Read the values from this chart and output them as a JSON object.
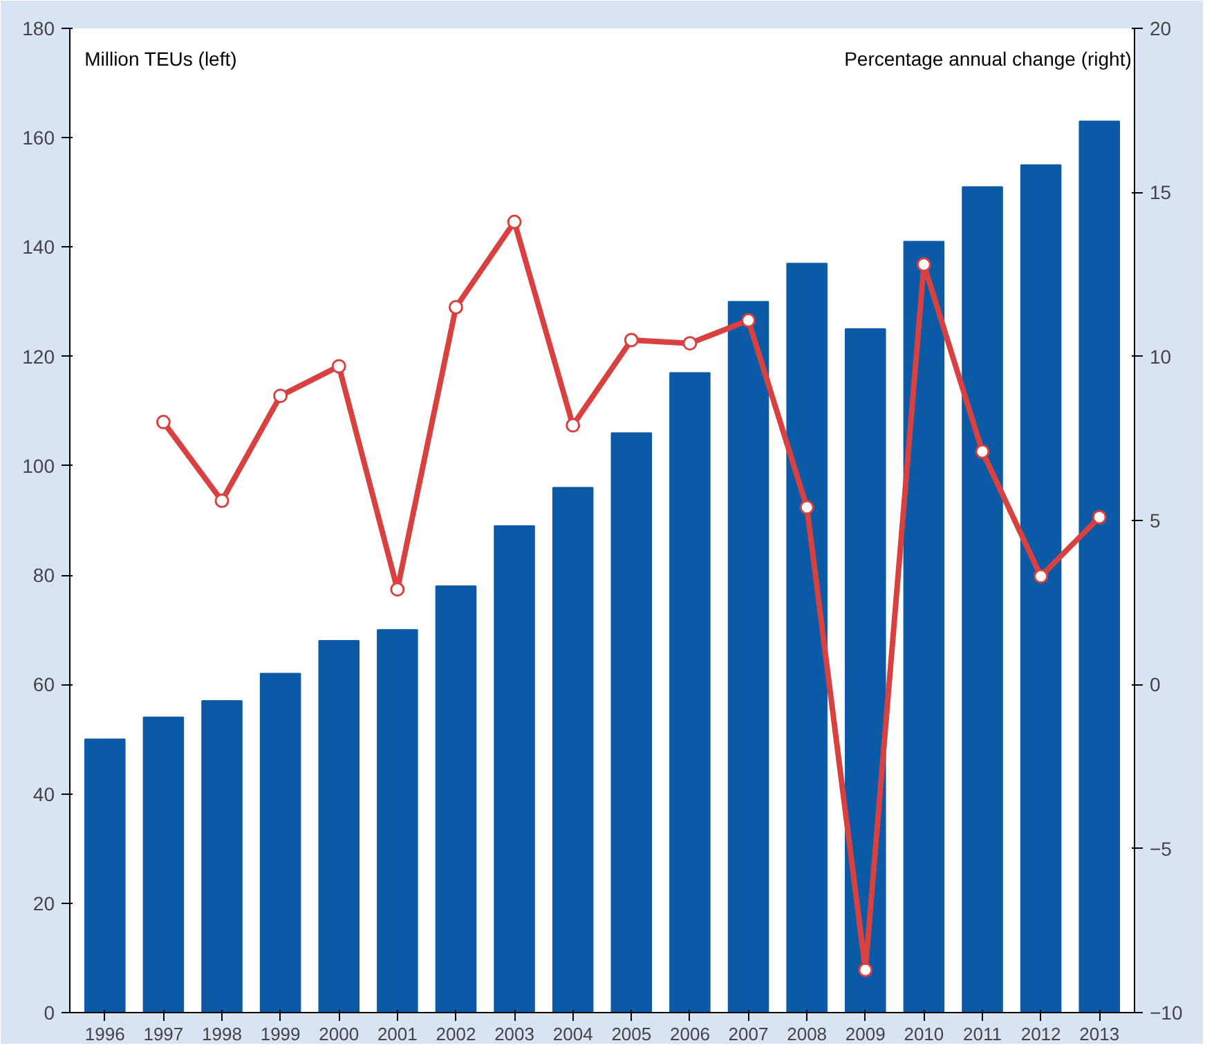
{
  "chart_data": {
    "type": "bar",
    "ylabel": "Million TEUs (left)",
    "y2label": "Percentage annual change (right)",
    "categories": [
      "1996",
      "1997",
      "1998",
      "1999",
      "2000",
      "2001",
      "2002",
      "2003",
      "2004",
      "2005",
      "2006",
      "2007",
      "2008",
      "2009",
      "2010",
      "2011",
      "2012",
      "2013"
    ],
    "series": [
      {
        "color": "#0a5aa5",
        "values": [
          50,
          54,
          57,
          62,
          68,
          70,
          78,
          89,
          96,
          106,
          117,
          130,
          137,
          125,
          141,
          151,
          155,
          163
        ]
      },
      {
        "type": "line",
        "axis": "y2",
        "color": "#d94040",
        "marker": "circle",
        "values": [
          null,
          8.0,
          5.6,
          8.8,
          9.7,
          2.9,
          11.5,
          14.1,
          7.9,
          10.5,
          10.4,
          11.1,
          5.4,
          -8.7,
          12.8,
          7.1,
          3.3,
          5.1
        ]
      }
    ],
    "ylim": [
      0,
      180
    ],
    "yticks": [
      0,
      20,
      40,
      60,
      80,
      100,
      120,
      140,
      160,
      180
    ],
    "y2lim": [
      -10,
      20
    ],
    "y2ticks": [
      -10,
      -5,
      0,
      5,
      10,
      15,
      20
    ],
    "grid": false
  }
}
